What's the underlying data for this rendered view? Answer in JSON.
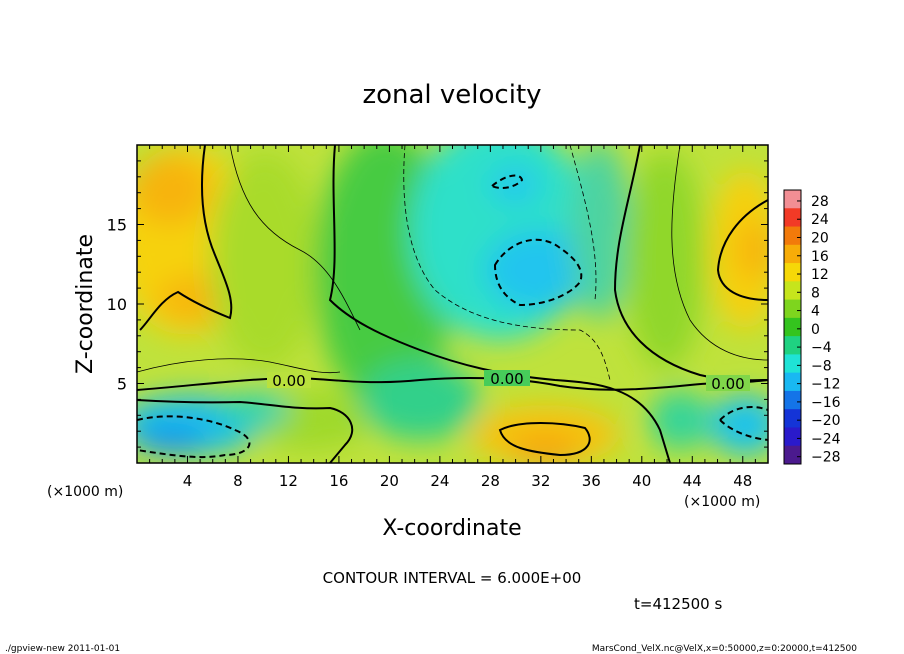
{
  "chart_data": {
    "type": "contour",
    "title": "zonal velocity",
    "xlabel": "X-coordinate",
    "ylabel": "Z-coordinate",
    "x_unit_left": "(×1000 m)",
    "x_unit_right": "(×1000 m)",
    "xlim": [
      0,
      50
    ],
    "ylim": [
      0,
      20
    ],
    "x_ticks": [
      "4",
      "8",
      "12",
      "16",
      "20",
      "24",
      "28",
      "32",
      "36",
      "40",
      "44",
      "48"
    ],
    "y_ticks": [
      "5",
      "10",
      "15"
    ],
    "contour_interval_text": "CONTOUR INTERVAL = 6.000E+00",
    "contour_labels": [
      "0.00",
      "0.00",
      "0.00"
    ],
    "colorbar": {
      "levels": [
        "28",
        "24",
        "20",
        "16",
        "12",
        "8",
        "4",
        "0",
        "−4",
        "−8",
        "−12",
        "−16",
        "−20",
        "−24",
        "−28"
      ],
      "colors": [
        "#f28e94",
        "#f23a26",
        "#f27a0a",
        "#f7ac08",
        "#f6d808",
        "#c6e51c",
        "#7ed51e",
        "#34c41e",
        "#1fd281",
        "#1fe3d6",
        "#19b8f2",
        "#1474e8",
        "#1434d7",
        "#2a1acb",
        "#4b1a8e"
      ]
    },
    "time_text": "t=412500 s"
  },
  "footer": {
    "left": "./gpview-new   2011-01-01",
    "right": "MarsCond_VelX.nc@VelX,x=0:50000,z=0:20000,t=412500"
  }
}
